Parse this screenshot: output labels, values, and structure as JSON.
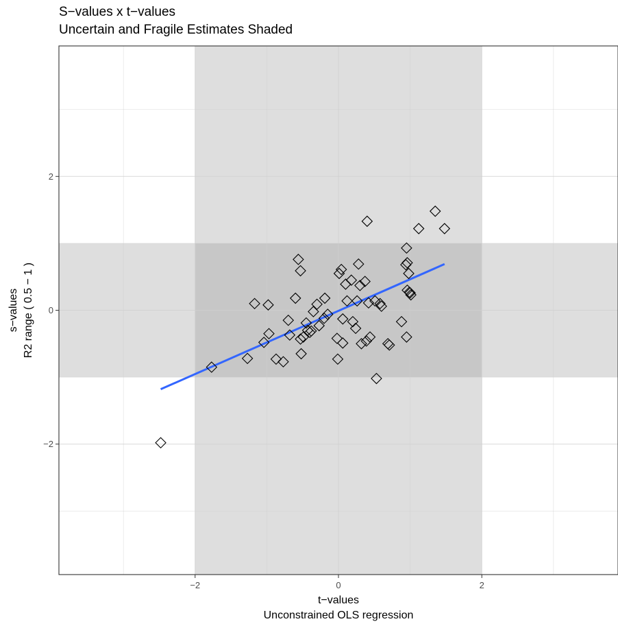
{
  "chart_data": {
    "type": "scatter",
    "title": "S−values x t−values",
    "subtitle": "Uncertain and Fragile Estimates Shaded",
    "xlabel": "t−values",
    "xlabel2": "Unconstrained OLS regression",
    "ylabel": "s−values",
    "ylabel2": "R2 range ( 0.5 − 1 )",
    "xlim": [
      -3.9,
      3.9
    ],
    "ylim": [
      -3.95,
      3.95
    ],
    "xticks": [
      -2,
      0,
      2
    ],
    "xtick_labels": [
      "−2",
      "0",
      "2"
    ],
    "yticks": [
      -2,
      0,
      2
    ],
    "ytick_labels": [
      "−2",
      "0",
      "2"
    ],
    "grid": true,
    "shaded_regions": {
      "x_band": [
        -2,
        2
      ],
      "y_band": [
        -1,
        1
      ]
    },
    "shade_color": "#999999",
    "marker": "diamond-open",
    "fit_line": {
      "type": "linear",
      "color": "#3366ff",
      "x": [
        -2.48,
        1.48
      ],
      "y": [
        -1.18,
        0.69
      ]
    },
    "points": [
      [
        -2.48,
        -1.98
      ],
      [
        -1.77,
        -0.85
      ],
      [
        -1.27,
        -0.72
      ],
      [
        -1.17,
        0.1
      ],
      [
        -1.04,
        -0.48
      ],
      [
        -0.98,
        0.08
      ],
      [
        -0.97,
        -0.35
      ],
      [
        -0.87,
        -0.73
      ],
      [
        -0.77,
        -0.77
      ],
      [
        -0.7,
        -0.15
      ],
      [
        -0.68,
        -0.37
      ],
      [
        -0.6,
        0.18
      ],
      [
        -0.56,
        0.76
      ],
      [
        -0.53,
        0.59
      ],
      [
        -0.53,
        -0.43
      ],
      [
        -0.52,
        -0.65
      ],
      [
        -0.49,
        -0.4
      ],
      [
        -0.45,
        -0.19
      ],
      [
        -0.43,
        -0.3
      ],
      [
        -0.4,
        -0.33
      ],
      [
        -0.38,
        -0.31
      ],
      [
        -0.35,
        -0.02
      ],
      [
        -0.3,
        0.09
      ],
      [
        -0.27,
        -0.23
      ],
      [
        -0.2,
        -0.12
      ],
      [
        -0.19,
        0.18
      ],
      [
        -0.15,
        -0.06
      ],
      [
        -0.02,
        -0.42
      ],
      [
        -0.01,
        -0.73
      ],
      [
        0.01,
        0.55
      ],
      [
        0.04,
        0.61
      ],
      [
        0.06,
        -0.49
      ],
      [
        0.06,
        -0.13
      ],
      [
        0.1,
        0.39
      ],
      [
        0.12,
        0.14
      ],
      [
        0.18,
        0.45
      ],
      [
        0.2,
        -0.17
      ],
      [
        0.24,
        -0.27
      ],
      [
        0.26,
        0.14
      ],
      [
        0.28,
        0.69
      ],
      [
        0.3,
        0.37
      ],
      [
        0.32,
        -0.5
      ],
      [
        0.37,
        0.43
      ],
      [
        0.39,
        -0.46
      ],
      [
        0.4,
        1.33
      ],
      [
        0.42,
        0.11
      ],
      [
        0.44,
        -0.4
      ],
      [
        0.51,
        0.14
      ],
      [
        0.53,
        -1.02
      ],
      [
        0.58,
        0.1
      ],
      [
        0.6,
        0.06
      ],
      [
        0.69,
        -0.5
      ],
      [
        0.71,
        -0.52
      ],
      [
        0.88,
        -0.17
      ],
      [
        0.94,
        0.68
      ],
      [
        0.95,
        0.93
      ],
      [
        0.95,
        -0.4
      ],
      [
        0.96,
        0.71
      ],
      [
        0.96,
        0.3
      ],
      [
        0.98,
        0.55
      ],
      [
        0.99,
        0.27
      ],
      [
        1.0,
        0.26
      ],
      [
        1.01,
        0.23
      ],
      [
        1.12,
        1.22
      ],
      [
        1.35,
        1.48
      ],
      [
        1.48,
        1.22
      ]
    ]
  }
}
